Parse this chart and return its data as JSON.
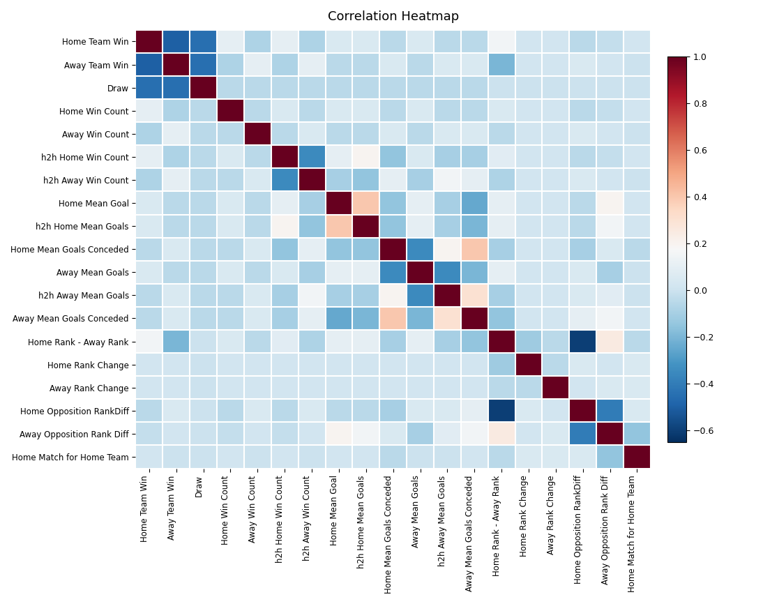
{
  "labels": [
    "Home Team Win",
    "Away Team Win",
    "Draw",
    "Home Win Count",
    "Away Win Count",
    "h2h Home Win Count",
    "h2h Away Win Count",
    "Home Mean Goal",
    "h2h Home Mean Goals",
    "Home Mean Goals Conceded",
    "Away Mean Goals",
    "h2h Away Mean Goals",
    "Away Mean Goals Conceded",
    "Home Rank - Away Rank",
    "Home Rank Change",
    "Away Rank Change",
    "Home Opposition RankDiff",
    "Away Opposition Rank Diff",
    "Home Match for Home Team"
  ],
  "title": "Correlation Heatmap",
  "vmin": -0.65,
  "vmax": 1.0,
  "cmap": "RdBu_r",
  "corr_matrix": [
    [
      1.0,
      -0.5,
      -0.45,
      0.1,
      -0.08,
      0.1,
      -0.08,
      0.05,
      0.05,
      -0.05,
      0.05,
      -0.05,
      -0.05,
      0.15,
      0.02,
      0.02,
      -0.05,
      -0.02,
      0.02
    ],
    [
      -0.5,
      1.0,
      -0.45,
      -0.08,
      0.1,
      -0.08,
      0.1,
      -0.05,
      -0.05,
      0.05,
      -0.05,
      0.05,
      0.05,
      -0.2,
      0.02,
      0.02,
      0.05,
      0.02,
      0.0
    ],
    [
      -0.45,
      -0.45,
      1.0,
      -0.05,
      -0.05,
      -0.05,
      -0.05,
      -0.05,
      -0.05,
      -0.05,
      -0.05,
      -0.05,
      -0.05,
      0.0,
      0.0,
      0.0,
      0.0,
      0.0,
      0.0
    ],
    [
      0.1,
      -0.08,
      -0.05,
      1.0,
      -0.05,
      0.05,
      -0.05,
      0.05,
      0.05,
      -0.05,
      0.05,
      -0.05,
      -0.05,
      0.05,
      0.02,
      0.02,
      -0.05,
      -0.02,
      0.02
    ],
    [
      -0.08,
      0.1,
      -0.05,
      -0.05,
      1.0,
      -0.05,
      0.05,
      -0.05,
      -0.05,
      0.05,
      -0.05,
      0.05,
      0.05,
      -0.05,
      0.02,
      0.02,
      0.05,
      0.02,
      0.0
    ],
    [
      0.1,
      -0.08,
      -0.05,
      0.05,
      -0.05,
      1.0,
      -0.35,
      0.1,
      0.2,
      -0.15,
      0.05,
      -0.1,
      -0.1,
      0.08,
      0.02,
      0.02,
      -0.05,
      -0.02,
      0.02
    ],
    [
      -0.08,
      0.1,
      -0.05,
      -0.05,
      0.05,
      -0.35,
      1.0,
      -0.1,
      -0.15,
      0.1,
      -0.1,
      0.15,
      0.1,
      -0.08,
      0.02,
      0.02,
      0.05,
      0.02,
      0.0
    ],
    [
      0.05,
      -0.05,
      -0.05,
      0.05,
      -0.05,
      0.1,
      -0.1,
      1.0,
      0.4,
      -0.15,
      0.1,
      -0.1,
      -0.25,
      0.1,
      0.02,
      0.02,
      -0.05,
      0.2,
      0.02
    ],
    [
      0.05,
      -0.05,
      -0.05,
      0.05,
      -0.05,
      0.2,
      -0.15,
      0.4,
      1.0,
      -0.15,
      0.1,
      -0.1,
      -0.2,
      0.1,
      0.02,
      0.02,
      -0.05,
      0.15,
      0.02
    ],
    [
      -0.05,
      0.05,
      -0.05,
      -0.05,
      0.05,
      -0.15,
      0.1,
      -0.15,
      -0.15,
      1.0,
      -0.35,
      0.2,
      0.4,
      -0.1,
      0.02,
      0.02,
      -0.1,
      0.05,
      -0.05
    ],
    [
      0.05,
      -0.05,
      -0.05,
      0.05,
      -0.05,
      0.05,
      -0.1,
      0.1,
      0.1,
      -0.35,
      1.0,
      -0.35,
      -0.2,
      0.1,
      0.02,
      0.02,
      0.05,
      -0.1,
      0.0
    ],
    [
      -0.05,
      0.05,
      -0.05,
      -0.05,
      0.05,
      -0.1,
      0.15,
      -0.1,
      -0.1,
      0.2,
      -0.35,
      1.0,
      0.3,
      -0.1,
      0.02,
      0.02,
      0.05,
      0.08,
      0.0
    ],
    [
      -0.05,
      0.05,
      -0.05,
      -0.05,
      0.05,
      -0.1,
      0.1,
      -0.25,
      -0.2,
      0.4,
      -0.2,
      0.3,
      1.0,
      -0.15,
      0.02,
      0.02,
      0.1,
      0.15,
      0.02
    ],
    [
      0.15,
      -0.2,
      0.0,
      0.05,
      -0.05,
      0.08,
      -0.08,
      0.1,
      0.1,
      -0.1,
      0.1,
      -0.1,
      -0.15,
      1.0,
      -0.12,
      -0.05,
      -0.6,
      0.25,
      -0.05
    ],
    [
      0.02,
      0.02,
      0.0,
      0.02,
      0.02,
      0.02,
      0.02,
      0.02,
      0.02,
      0.02,
      0.02,
      0.02,
      0.02,
      -0.12,
      1.0,
      -0.05,
      0.05,
      0.02,
      0.05
    ],
    [
      0.02,
      0.02,
      0.0,
      0.02,
      0.02,
      0.02,
      0.02,
      0.02,
      0.02,
      0.02,
      0.02,
      0.02,
      0.02,
      -0.05,
      -0.05,
      1.0,
      0.02,
      0.05,
      0.05
    ],
    [
      -0.05,
      0.05,
      0.0,
      -0.05,
      0.05,
      -0.05,
      0.05,
      -0.05,
      -0.05,
      -0.1,
      0.05,
      0.05,
      0.1,
      -0.6,
      0.05,
      0.02,
      1.0,
      -0.4,
      0.05
    ],
    [
      -0.02,
      0.02,
      0.0,
      -0.02,
      0.02,
      -0.02,
      0.02,
      0.2,
      0.15,
      0.05,
      -0.1,
      0.08,
      0.15,
      0.25,
      0.02,
      0.05,
      -0.4,
      1.0,
      -0.15
    ],
    [
      0.02,
      0.0,
      0.0,
      0.02,
      0.0,
      0.02,
      0.0,
      0.02,
      0.02,
      -0.05,
      0.0,
      0.0,
      0.02,
      -0.05,
      0.05,
      0.05,
      0.05,
      -0.15,
      1.0
    ]
  ],
  "figsize": [
    10.94,
    8.66
  ],
  "dpi": 100
}
